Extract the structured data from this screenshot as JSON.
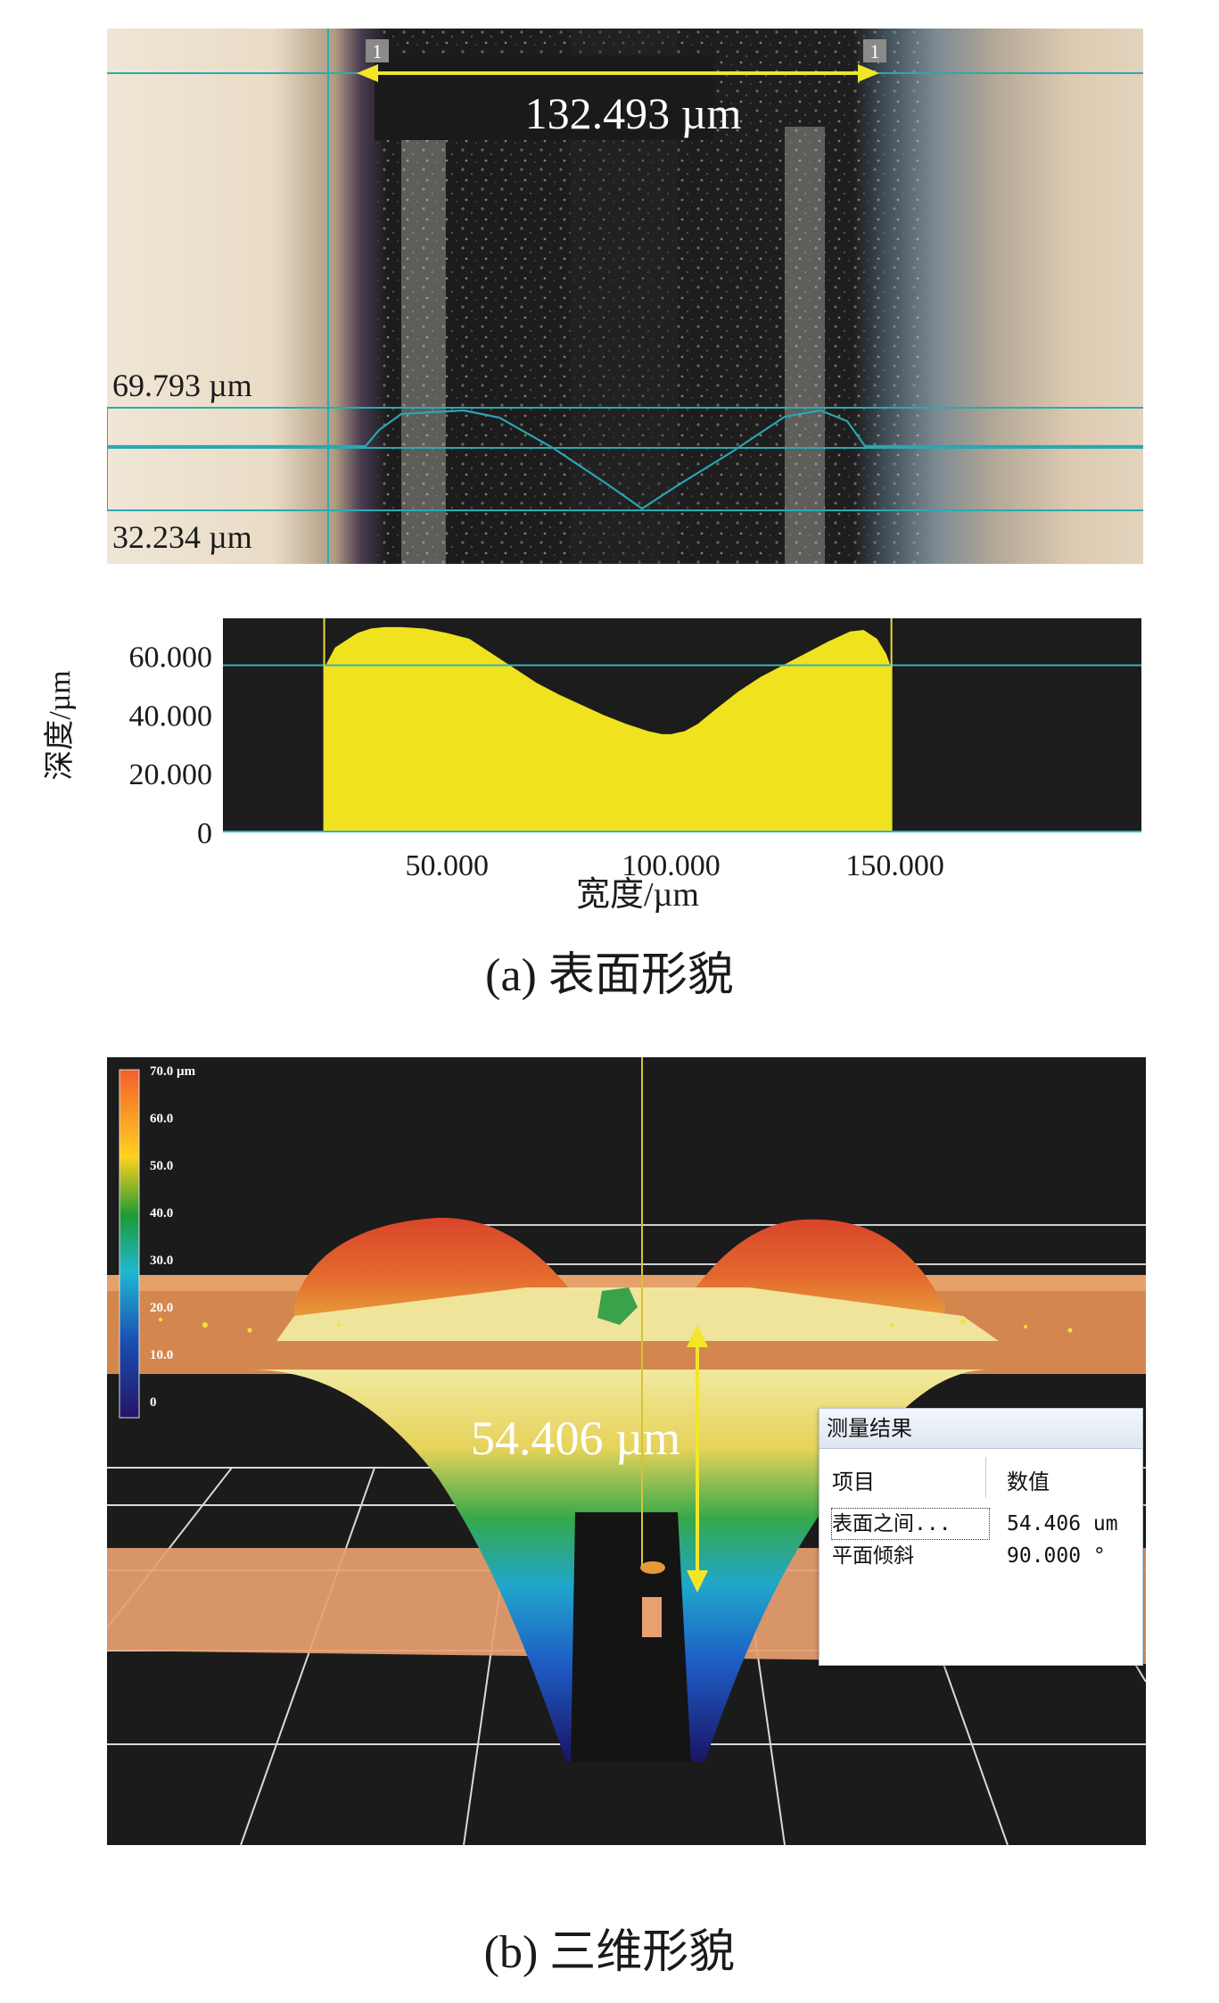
{
  "panel_a": {
    "width_measure": "132.493 µm",
    "marker_label": "1",
    "upper_level": "69.793 µm",
    "lower_level": "32.234 µm",
    "caption": "(a) 表面形貌"
  },
  "chart_data": {
    "type": "area",
    "xlabel": "宽度/µm",
    "ylabel": "深度/µm",
    "xlim": [
      0,
      205
    ],
    "ylim": [
      0,
      73
    ],
    "x_ticks": [
      50,
      100,
      150
    ],
    "x_tick_labels": [
      "50.000",
      "100.000",
      "150.000"
    ],
    "y_ticks": [
      0,
      20,
      40,
      60
    ],
    "y_tick_labels": [
      "0",
      "20.000",
      "40.000",
      "60.000"
    ],
    "reference_level": 57,
    "cursor_x": [
      22.6,
      149.2
    ],
    "grid": false,
    "colors": {
      "fill": "#f1e21f",
      "background": "#1c1c1c",
      "lines": "#2fb5bf"
    },
    "x": [
      22.6,
      25,
      28,
      30,
      33,
      36,
      40,
      45,
      50,
      55,
      58,
      62,
      66,
      70,
      75,
      80,
      85,
      90,
      95,
      98,
      100,
      103,
      106,
      110,
      115,
      120,
      125,
      130,
      135,
      140,
      143,
      146,
      148,
      149.2
    ],
    "y": [
      56,
      63,
      66,
      68,
      69.5,
      70,
      70,
      69.5,
      68,
      66,
      63,
      59,
      55,
      51,
      47,
      43.5,
      40,
      37,
      34.5,
      33.5,
      33.5,
      34.5,
      37,
      42,
      48,
      53,
      57,
      61,
      65,
      68.5,
      69,
      66,
      61,
      56
    ]
  },
  "panel_b": {
    "colorbar_labels": [
      "70.0 µm",
      "60.0",
      "50.0",
      "40.0",
      "30.0",
      "20.0",
      "10.0",
      "0"
    ],
    "colorbar_colors": [
      "#f25e2c",
      "#f2a01e",
      "#ffd21e",
      "#1e9a34",
      "#20b8d0",
      "#1a6ec4",
      "#201a82"
    ],
    "height_measure": "54.406 µm",
    "caption": "(b) 三维形貌"
  },
  "dialog": {
    "title": "测量结果",
    "col_item": "项目",
    "col_value": "数值",
    "rows": [
      {
        "name": "表面之间...",
        "value": "54.406 um"
      },
      {
        "name": "平面倾斜",
        "value": "90.000 °"
      }
    ]
  }
}
